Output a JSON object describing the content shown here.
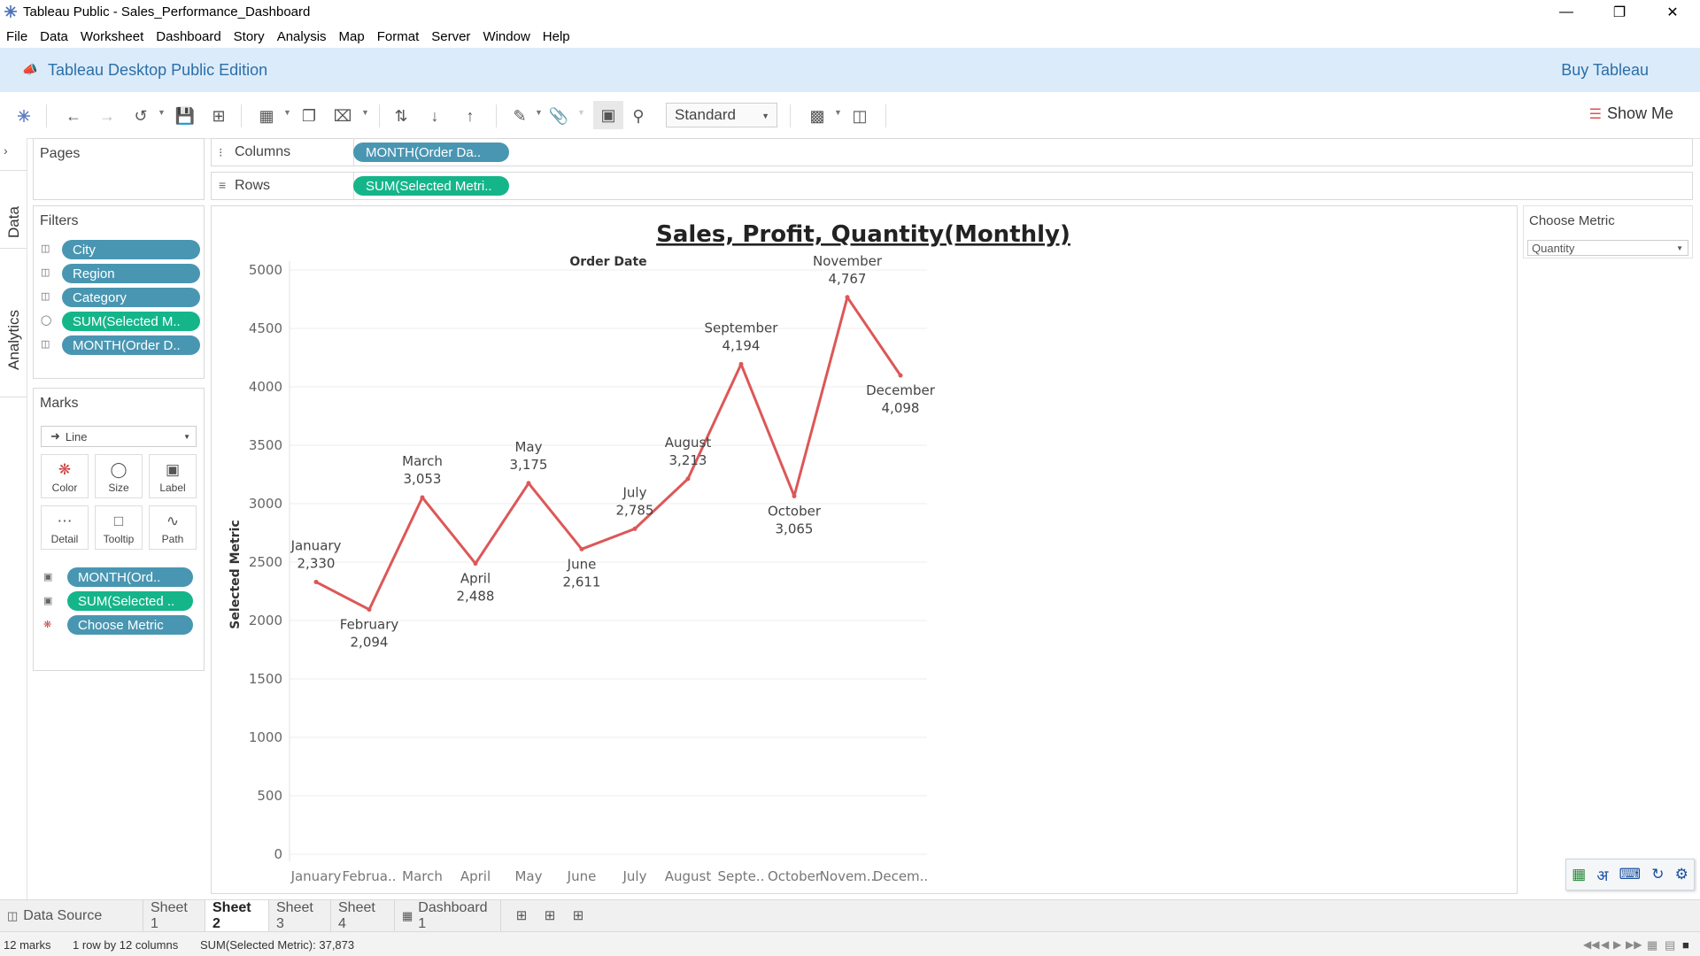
{
  "window": {
    "title": "Tableau Public - Sales_Performance_Dashboard",
    "minimize": "—",
    "restore": "❐",
    "close": "✕"
  },
  "menu": [
    "File",
    "Data",
    "Worksheet",
    "Dashboard",
    "Story",
    "Analysis",
    "Map",
    "Format",
    "Server",
    "Window",
    "Help"
  ],
  "banner": {
    "text": "Tableau Desktop Public Edition",
    "buy": "Buy Tableau"
  },
  "toolbar": {
    "fit": "Standard",
    "show_me": "Show Me"
  },
  "side_tabs": {
    "data": "Data",
    "analytics": "Analytics"
  },
  "pages": {
    "title": "Pages"
  },
  "filters": {
    "title": "Filters",
    "items": [
      {
        "label": "City",
        "color": "blue"
      },
      {
        "label": "Region",
        "color": "blue"
      },
      {
        "label": "Category",
        "color": "blue"
      },
      {
        "label": "SUM(Selected M..",
        "color": "green"
      },
      {
        "label": "MONTH(Order D..",
        "color": "blue"
      }
    ]
  },
  "marks": {
    "title": "Marks",
    "type": "Line",
    "cards": [
      "Color",
      "Size",
      "Label",
      "Detail",
      "Tooltip",
      "Path"
    ],
    "fields": [
      {
        "label": "MONTH(Ord..",
        "color": "blue"
      },
      {
        "label": "SUM(Selected ..",
        "color": "green"
      },
      {
        "label": "Choose Metric",
        "color": "blue"
      }
    ]
  },
  "shelves": {
    "columns_label": "Columns",
    "columns_pill": "MONTH(Order Da..",
    "rows_label": "Rows",
    "rows_pill": "SUM(Selected Metri.."
  },
  "parameter": {
    "title": "Choose Metric",
    "value": "Quantity"
  },
  "chart_data": {
    "type": "line",
    "title": "Sales, Profit, Quantity(Monthly)",
    "x_header": "Order Date",
    "ylabel": "Selected Metric",
    "categories": [
      "January",
      "February",
      "March",
      "April",
      "May",
      "June",
      "July",
      "August",
      "September",
      "October",
      "November",
      "December"
    ],
    "tick_labels": [
      "January",
      "Februa..",
      "March",
      "April",
      "May",
      "June",
      "July",
      "August",
      "Septe..",
      "October",
      "Novem..",
      "Decem.."
    ],
    "values": [
      2330,
      2094,
      3053,
      2488,
      3175,
      2611,
      2785,
      3213,
      4194,
      3065,
      4767,
      4098
    ],
    "value_labels": [
      "2,330",
      "2,094",
      "3,053",
      "2,488",
      "3,175",
      "2,611",
      "2,785",
      "3,213",
      "4,194",
      "3,065",
      "4,767",
      "4,098"
    ],
    "yticks": [
      0,
      500,
      1000,
      1500,
      2000,
      2500,
      3000,
      3500,
      4000,
      4500,
      5000
    ],
    "ylim": [
      0,
      5000
    ],
    "line_color": "#dd5757",
    "grid": true
  },
  "sheet_tabs": {
    "data_source": "Data Source",
    "sheets": [
      "Sheet 1",
      "Sheet 2",
      "Sheet 3",
      "Sheet 4"
    ],
    "active": "Sheet 2",
    "dashboard": "Dashboard 1"
  },
  "status": {
    "marks": "12 marks",
    "dims": "1 row by 12 columns",
    "sum": "SUM(Selected Metric): 37,873"
  },
  "language_bar": {
    "label": "अ"
  }
}
